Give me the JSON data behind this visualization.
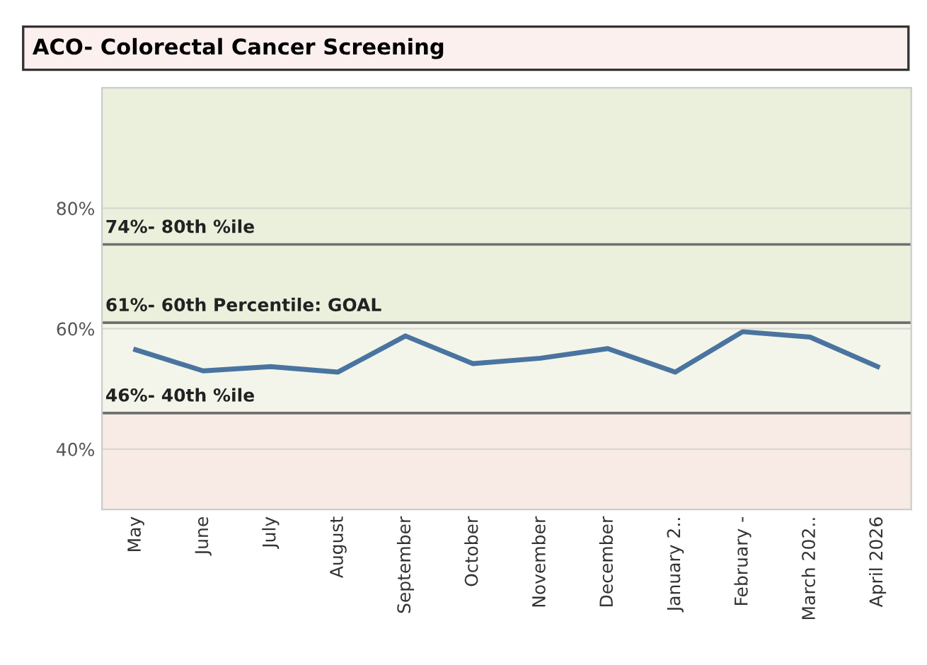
{
  "chart_data": {
    "type": "line",
    "title": "ACO- Colorectal Cancer Screening",
    "categories": [
      "May",
      "June",
      "July",
      "August",
      "September",
      "October",
      "November",
      "December",
      "January 2..",
      "February -",
      "March 202..",
      "April 2026"
    ],
    "series": [
      {
        "color": "#4a74a0",
        "values": [
          56.5,
          53,
          53.7,
          52.8,
          58.8,
          54.2,
          55.1,
          56.7,
          52.8,
          59.5,
          58.6,
          53.7
        ]
      }
    ],
    "ylim": [
      30,
      100
    ],
    "yticks": [
      {
        "value": 40,
        "label": "40%"
      },
      {
        "value": 60,
        "label": "60%"
      },
      {
        "value": 80,
        "label": "80%"
      }
    ],
    "grid": "y",
    "bands": [
      {
        "axis": "y",
        "from": 30,
        "to": 46,
        "color": "#f8ebe5"
      },
      {
        "axis": "y",
        "from": 46,
        "to": 61,
        "color": "#f3f5ea"
      },
      {
        "axis": "y",
        "from": 61,
        "to": 100,
        "color": "#eaf0dc"
      }
    ],
    "ref_lines": [
      {
        "axis": "y",
        "value": 74,
        "label": "74%- 80th %ile",
        "color": "#6e6e6e"
      },
      {
        "axis": "y",
        "value": 61,
        "label": "61%- 60th Percentile: GOAL",
        "color": "#6e6e6e"
      },
      {
        "axis": "y",
        "value": 46,
        "label": "46%- 40th %ile",
        "color": "#6e6e6e"
      }
    ],
    "line_style": "solid",
    "marker": "none"
  }
}
